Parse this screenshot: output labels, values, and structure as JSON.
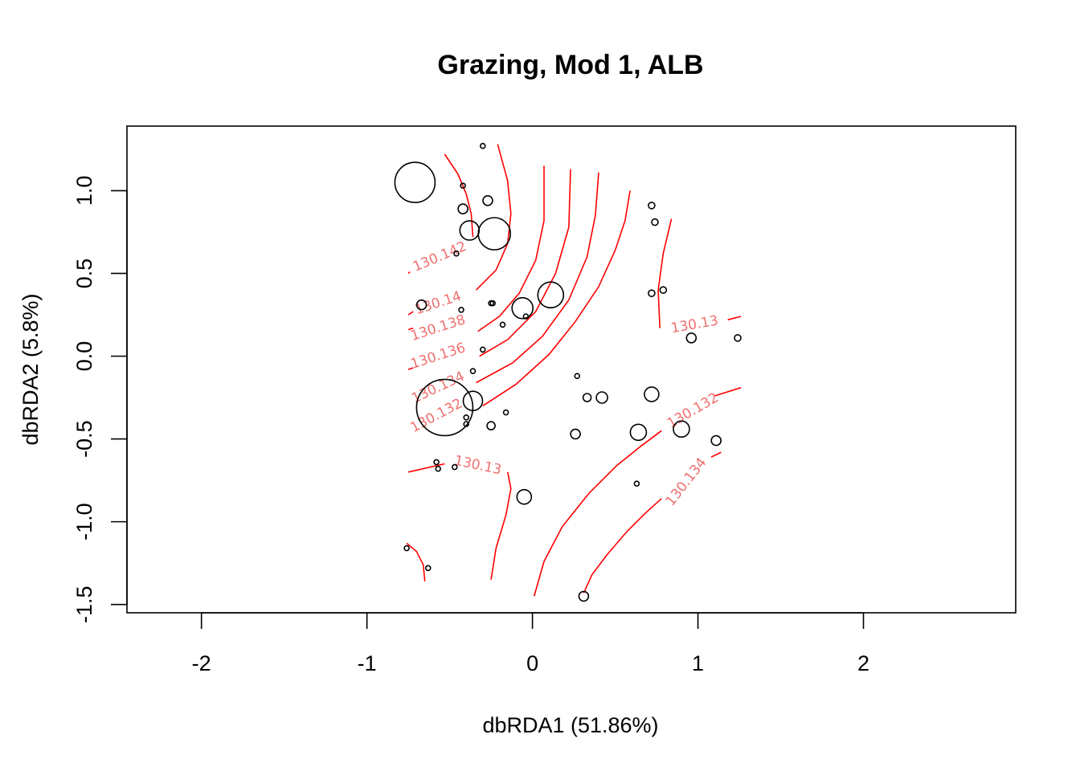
{
  "chart_data": {
    "type": "scatter",
    "title": "Grazing, Mod 1, ALB",
    "xlabel": "dbRDA1 (51.86%)",
    "ylabel": "dbRDA2 (5.8%)",
    "xlim": [
      -2.45,
      2.92
    ],
    "ylim": [
      -1.55,
      1.39
    ],
    "x_ticks": [
      {
        "value": -2,
        "label": "-2"
      },
      {
        "value": -1,
        "label": "-1"
      },
      {
        "value": 0,
        "label": "0"
      },
      {
        "value": 1,
        "label": "1"
      },
      {
        "value": 2,
        "label": "2"
      }
    ],
    "y_ticks": [
      {
        "value": -1.5,
        "label": "-1.5"
      },
      {
        "value": -1.0,
        "label": "-1.0"
      },
      {
        "value": -0.5,
        "label": "-0.5"
      },
      {
        "value": 0.0,
        "label": "0.0"
      },
      {
        "value": 0.5,
        "label": "0.5"
      },
      {
        "value": 1.0,
        "label": "1.0"
      }
    ],
    "grid": false,
    "legend": "none",
    "point_color": "#000000",
    "contour_color": "#ff0000",
    "contour_label_color": "#f07070",
    "points": [
      {
        "x": -0.71,
        "y": 1.05,
        "size": 25
      },
      {
        "x": -0.3,
        "y": 1.27,
        "size": 3
      },
      {
        "x": -0.42,
        "y": 1.03,
        "size": 3
      },
      {
        "x": -0.27,
        "y": 0.94,
        "size": 6
      },
      {
        "x": -0.42,
        "y": 0.89,
        "size": 6
      },
      {
        "x": -0.38,
        "y": 0.76,
        "size": 12
      },
      {
        "x": -0.23,
        "y": 0.74,
        "size": 20
      },
      {
        "x": -0.46,
        "y": 0.62,
        "size": 3
      },
      {
        "x": 0.11,
        "y": 0.37,
        "size": 16
      },
      {
        "x": -0.67,
        "y": 0.31,
        "size": 6
      },
      {
        "x": -0.25,
        "y": 0.32,
        "size": 3
      },
      {
        "x": -0.24,
        "y": 0.32,
        "size": 3
      },
      {
        "x": -0.06,
        "y": 0.29,
        "size": 13
      },
      {
        "x": -0.43,
        "y": 0.28,
        "size": 3
      },
      {
        "x": -0.04,
        "y": 0.24,
        "size": 3
      },
      {
        "x": -0.18,
        "y": 0.19,
        "size": 3
      },
      {
        "x": -0.3,
        "y": 0.04,
        "size": 3
      },
      {
        "x": -0.36,
        "y": -0.09,
        "size": 3
      },
      {
        "x": -0.36,
        "y": -0.27,
        "size": 12
      },
      {
        "x": -0.53,
        "y": -0.31,
        "size": 35
      },
      {
        "x": -0.16,
        "y": -0.34,
        "size": 3
      },
      {
        "x": -0.4,
        "y": -0.37,
        "size": 3
      },
      {
        "x": -0.4,
        "y": -0.41,
        "size": 3
      },
      {
        "x": -0.25,
        "y": -0.42,
        "size": 5
      },
      {
        "x": 0.27,
        "y": -0.12,
        "size": 3
      },
      {
        "x": 0.33,
        "y": -0.25,
        "size": 5
      },
      {
        "x": 0.42,
        "y": -0.25,
        "size": 7
      },
      {
        "x": 0.72,
        "y": -0.23,
        "size": 9
      },
      {
        "x": 0.64,
        "y": -0.46,
        "size": 10
      },
      {
        "x": 0.9,
        "y": -0.44,
        "size": 10
      },
      {
        "x": 1.11,
        "y": -0.51,
        "size": 6
      },
      {
        "x": 0.26,
        "y": -0.47,
        "size": 6
      },
      {
        "x": 0.72,
        "y": 0.91,
        "size": 4
      },
      {
        "x": 0.74,
        "y": 0.81,
        "size": 4
      },
      {
        "x": 0.72,
        "y": 0.38,
        "size": 4
      },
      {
        "x": 0.79,
        "y": 0.4,
        "size": 4
      },
      {
        "x": 0.96,
        "y": 0.11,
        "size": 6
      },
      {
        "x": 1.24,
        "y": 0.11,
        "size": 4
      },
      {
        "x": -0.58,
        "y": -0.64,
        "size": 3
      },
      {
        "x": -0.57,
        "y": -0.68,
        "size": 3
      },
      {
        "x": -0.47,
        "y": -0.67,
        "size": 3
      },
      {
        "x": -0.05,
        "y": -0.85,
        "size": 9
      },
      {
        "x": 0.63,
        "y": -0.77,
        "size": 3
      },
      {
        "x": -0.76,
        "y": -1.16,
        "size": 3
      },
      {
        "x": -0.63,
        "y": -1.28,
        "size": 3
      },
      {
        "x": 0.31,
        "y": -1.45,
        "size": 6
      }
    ],
    "contours": [
      {
        "level": "130.142",
        "line": [
          [
            -0.75,
            0.5
          ],
          [
            -0.74,
            0.51
          ]
        ],
        "label_at": [
          -0.56,
          0.6
        ],
        "angle": -23
      },
      {
        "level": "130.142",
        "line": [
          [
            -0.53,
            1.22
          ],
          [
            -0.45,
            1.1
          ],
          [
            -0.4,
            0.98
          ],
          [
            -0.37,
            0.86
          ],
          [
            -0.36,
            0.72
          ]
        ]
      },
      {
        "level": "130.14",
        "line": [
          [
            -0.75,
            0.25
          ],
          [
            -0.72,
            0.27
          ]
        ],
        "label_at": [
          -0.57,
          0.32
        ],
        "angle": -18
      },
      {
        "level": "130.14",
        "line": [
          [
            -0.34,
            0.4
          ],
          [
            -0.22,
            0.52
          ],
          [
            -0.15,
            0.68
          ],
          [
            -0.13,
            0.86
          ],
          [
            -0.15,
            1.06
          ],
          [
            -0.21,
            1.28
          ]
        ]
      },
      {
        "level": "130.138",
        "line": [
          [
            -0.75,
            0.16
          ],
          [
            -0.72,
            0.17
          ]
        ],
        "label_at": [
          -0.57,
          0.17
        ],
        "angle": -18
      },
      {
        "level": "130.138",
        "line": [
          [
            -0.33,
            0.15
          ],
          [
            -0.2,
            0.24
          ],
          [
            -0.08,
            0.38
          ],
          [
            0.02,
            0.58
          ],
          [
            0.07,
            0.82
          ],
          [
            0.07,
            1.15
          ]
        ]
      },
      {
        "level": "130.136",
        "line": [
          [
            -0.75,
            -0.08
          ],
          [
            -0.72,
            -0.07
          ]
        ],
        "label_at": [
          -0.57,
          0.0
        ],
        "angle": -18
      },
      {
        "level": "130.136",
        "line": [
          [
            -0.32,
            0.0
          ],
          [
            -0.15,
            0.1
          ],
          [
            0.02,
            0.27
          ],
          [
            0.14,
            0.5
          ],
          [
            0.22,
            0.78
          ],
          [
            0.23,
            1.13
          ]
        ]
      },
      {
        "level": "130.134",
        "line": [
          [
            -0.34,
            -0.16
          ],
          [
            -0.12,
            -0.04
          ],
          [
            0.06,
            0.12
          ],
          [
            0.22,
            0.34
          ],
          [
            0.33,
            0.6
          ],
          [
            0.38,
            0.85
          ],
          [
            0.4,
            1.11
          ]
        ],
        "label_at": [
          -0.57,
          -0.19
        ],
        "angle": -25
      },
      {
        "level": "130.132",
        "line": [
          [
            -0.3,
            -0.3
          ],
          [
            -0.1,
            -0.17
          ],
          [
            0.1,
            0.01
          ],
          [
            0.26,
            0.21
          ],
          [
            0.4,
            0.42
          ],
          [
            0.5,
            0.64
          ],
          [
            0.56,
            0.82
          ],
          [
            0.59,
            1.0
          ]
        ],
        "label_at": [
          -0.58,
          -0.36
        ],
        "angle": -28
      },
      {
        "level": "130.13",
        "line": [
          [
            0.84,
            0.83
          ],
          [
            0.79,
            0.62
          ],
          [
            0.76,
            0.4
          ],
          [
            0.77,
            0.17
          ]
        ],
        "label_at": [
          0.98,
          0.19
        ],
        "angle": -10
      },
      {
        "level": "130.13",
        "line": [
          [
            1.18,
            0.22
          ],
          [
            1.26,
            0.24
          ]
        ]
      },
      {
        "level": "130.13",
        "line": [
          [
            -0.75,
            -0.7
          ],
          [
            -0.53,
            -0.65
          ]
        ],
        "label_at": [
          -0.33,
          -0.66
        ],
        "angle": 12
      },
      {
        "level": "130.13",
        "line": [
          [
            -0.15,
            -0.7
          ],
          [
            -0.13,
            -0.8
          ],
          [
            -0.16,
            -0.96
          ],
          [
            -0.22,
            -1.16
          ],
          [
            -0.25,
            -1.35
          ]
        ]
      },
      {
        "level": "130.13",
        "line": [
          [
            -0.76,
            -1.13
          ],
          [
            -0.7,
            -1.18
          ],
          [
            -0.66,
            -1.26
          ],
          [
            -0.65,
            -1.36
          ]
        ]
      },
      {
        "level": "130.132",
        "line": [
          [
            1.1,
            -0.24
          ],
          [
            1.26,
            -0.19
          ]
        ],
        "label_at": [
          0.97,
          -0.33
        ],
        "angle": -30
      },
      {
        "level": "130.132",
        "line": [
          [
            0.01,
            -1.45
          ],
          [
            0.07,
            -1.24
          ],
          [
            0.18,
            -1.03
          ],
          [
            0.34,
            -0.83
          ],
          [
            0.51,
            -0.66
          ],
          [
            0.66,
            -0.54
          ],
          [
            0.78,
            -0.45
          ]
        ]
      },
      {
        "level": "130.134",
        "line": [
          [
            1.08,
            -0.61
          ],
          [
            1.14,
            -0.58
          ]
        ],
        "label_at": [
          0.93,
          -0.76
        ],
        "angle": -52
      },
      {
        "level": "130.134",
        "line": [
          [
            0.31,
            -1.43
          ],
          [
            0.36,
            -1.32
          ],
          [
            0.45,
            -1.2
          ],
          [
            0.57,
            -1.06
          ],
          [
            0.68,
            -0.95
          ],
          [
            0.78,
            -0.86
          ]
        ]
      }
    ]
  }
}
